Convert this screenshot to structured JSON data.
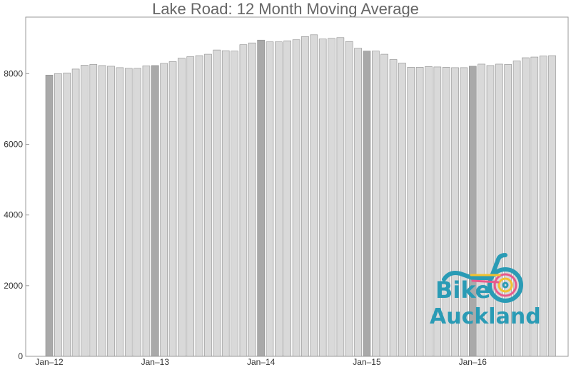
{
  "chart_data": {
    "type": "bar",
    "title": "Lake Road: 12 Month Moving Average",
    "xlabel": "",
    "ylabel": "",
    "ylim": [
      0,
      9600
    ],
    "yticks": [
      0,
      2000,
      4000,
      6000,
      8000
    ],
    "x_tick_labels": [
      "Jan–12",
      "Jan–13",
      "Jan–14",
      "Jan–15",
      "Jan–16"
    ],
    "categories": [
      "Jan 2012",
      "Feb 2012",
      "Mar 2012",
      "Apr 2012",
      "May 2012",
      "Jun 2012",
      "Jul 2012",
      "Aug 2012",
      "Sep 2012",
      "Oct 2012",
      "Nov 2012",
      "Dec 2012",
      "Jan 2013",
      "Feb 2013",
      "Mar 2013",
      "Apr 2013",
      "May 2013",
      "Jun 2013",
      "Jul 2013",
      "Aug 2013",
      "Sep 2013",
      "Oct 2013",
      "Nov 2013",
      "Dec 2013",
      "Jan 2014",
      "Feb 2014",
      "Mar 2014",
      "Apr 2014",
      "May 2014",
      "Jun 2014",
      "Jul 2014",
      "Aug 2014",
      "Sep 2014",
      "Oct 2014",
      "Nov 2014",
      "Dec 2014",
      "Jan 2015",
      "Feb 2015",
      "Mar 2015",
      "Apr 2015",
      "May 2015",
      "Jun 2015",
      "Jul 2015",
      "Aug 2015",
      "Sep 2015",
      "Oct 2015",
      "Nov 2015",
      "Dec 2015",
      "Jan 2016",
      "Feb 2016",
      "Mar 2016",
      "Apr 2016",
      "May 2016",
      "Jun 2016",
      "Jul 2016",
      "Aug 2016",
      "Sep 2016",
      "Oct 2016"
    ],
    "values": [
      7960,
      8000,
      8020,
      8130,
      8240,
      8260,
      8230,
      8210,
      8170,
      8150,
      8150,
      8220,
      8230,
      8290,
      8340,
      8440,
      8480,
      8510,
      8550,
      8670,
      8650,
      8640,
      8820,
      8870,
      8950,
      8900,
      8900,
      8930,
      8960,
      9050,
      9100,
      8980,
      9000,
      9020,
      8910,
      8720,
      8640,
      8640,
      8550,
      8400,
      8300,
      8180,
      8180,
      8200,
      8190,
      8180,
      8170,
      8170,
      8210,
      8270,
      8230,
      8270,
      8260,
      8360,
      8450,
      8470,
      8500,
      8510
    ],
    "highlight_indices": [
      0,
      12,
      24,
      36,
      48
    ],
    "colors": {
      "bar": "#d9d9d9",
      "bar_highlight": "#a9a9a9",
      "bar_stroke": "#8c8c8c",
      "frame": "#999999",
      "text": "#333333",
      "title": "#666666"
    },
    "grid": false,
    "legend": "none"
  },
  "logo": {
    "line1": "Bike",
    "line2": "Auckland",
    "color": "#2a9bb5"
  }
}
